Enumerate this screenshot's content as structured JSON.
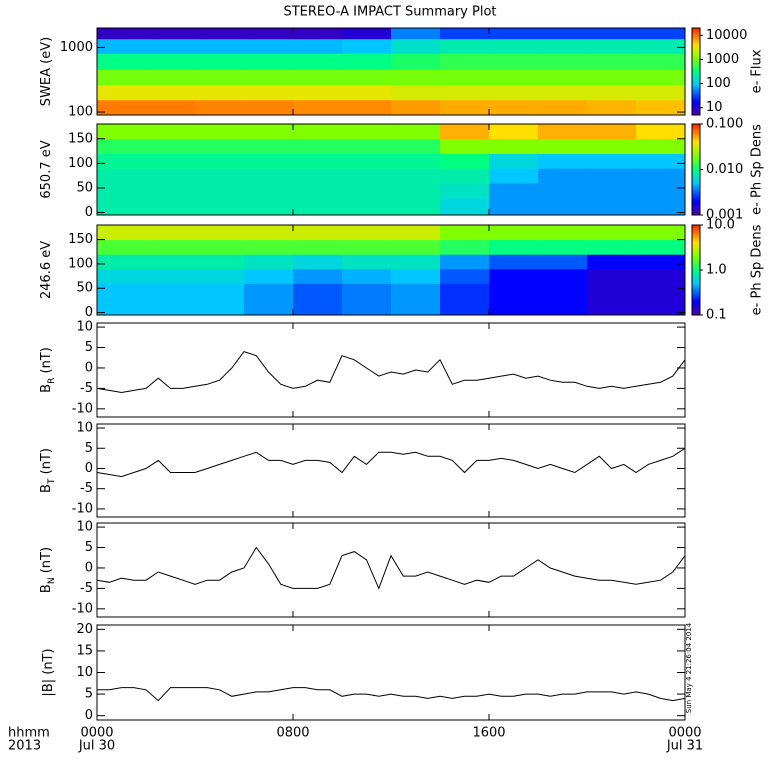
{
  "title": "STEREO-A IMPACT Summary Plot",
  "timestamp": "Sun May  4 21:26:04 2014",
  "xaxis": {
    "xlim": [
      0,
      24
    ],
    "xticks": [
      {
        "value": 0,
        "label": "0000"
      },
      {
        "value": 8,
        "label": "0800"
      },
      {
        "value": 16,
        "label": "1600"
      },
      {
        "value": 24,
        "label": "0000"
      }
    ],
    "dates": [
      {
        "value": 0,
        "label": "Jul 30"
      },
      {
        "value": 24,
        "label": "Jul 31"
      }
    ],
    "unit_label": "hhmm",
    "year": "2013"
  },
  "chart_data": [
    {
      "type": "heatmap",
      "ylabel": "SWEA (eV)",
      "ylog": true,
      "ylim": [
        90,
        2000
      ],
      "yticks": [
        100,
        1000
      ],
      "colorbar_label": "e- Flux",
      "clim": [
        5,
        20000
      ],
      "cticks": [
        10,
        100,
        1000,
        10000
      ],
      "x": [
        1,
        3,
        5,
        7,
        9,
        11,
        13,
        15,
        17,
        19,
        21,
        23
      ],
      "y": [
        120,
        200,
        350,
        600,
        1100,
        1700
      ],
      "values": [
        [
          9000,
          9000,
          8500,
          8500,
          8000,
          8000,
          7000,
          6000,
          6000,
          6000,
          5500,
          5000
        ],
        [
          3000,
          3000,
          3000,
          3000,
          3000,
          3000,
          2500,
          2500,
          2500,
          2500,
          2500,
          2500
        ],
        [
          1000,
          1000,
          1000,
          1000,
          1000,
          1000,
          1000,
          1000,
          1000,
          1000,
          1000,
          1000
        ],
        [
          300,
          300,
          300,
          300,
          300,
          300,
          400,
          500,
          500,
          500,
          500,
          500
        ],
        [
          80,
          80,
          80,
          80,
          80,
          90,
          150,
          200,
          200,
          200,
          200,
          200
        ],
        [
          8,
          8,
          8,
          8,
          8,
          10,
          50,
          30,
          30,
          30,
          30,
          30
        ]
      ]
    },
    {
      "type": "heatmap",
      "ylabel": "650.7 eV",
      "ylog": false,
      "ylim": [
        -5,
        180
      ],
      "yticks": [
        0,
        50,
        100,
        150
      ],
      "colorbar_label": "e- Ph Sp Dens",
      "clim": [
        0.001,
        0.1
      ],
      "cticks": [
        0.001,
        {
          "value": 0.01,
          "label": "0.010"
        },
        {
          "value": 0.1,
          "label": "0.100"
        }
      ],
      "x": [
        1,
        3,
        5,
        7,
        9,
        11,
        13,
        15,
        17,
        19,
        21,
        23
      ],
      "y": [
        15,
        45,
        75,
        105,
        135,
        165
      ],
      "values": [
        [
          0.008,
          0.008,
          0.008,
          0.008,
          0.008,
          0.008,
          0.008,
          0.006,
          0.004,
          0.004,
          0.004,
          0.004
        ],
        [
          0.008,
          0.008,
          0.008,
          0.008,
          0.008,
          0.008,
          0.008,
          0.007,
          0.004,
          0.004,
          0.004,
          0.004
        ],
        [
          0.008,
          0.008,
          0.008,
          0.008,
          0.008,
          0.008,
          0.008,
          0.008,
          0.005,
          0.004,
          0.004,
          0.004
        ],
        [
          0.009,
          0.009,
          0.009,
          0.009,
          0.009,
          0.009,
          0.009,
          0.01,
          0.006,
          0.005,
          0.005,
          0.005
        ],
        [
          0.012,
          0.012,
          0.012,
          0.012,
          0.012,
          0.012,
          0.012,
          0.02,
          0.02,
          0.02,
          0.02,
          0.02
        ],
        [
          0.02,
          0.02,
          0.02,
          0.02,
          0.02,
          0.02,
          0.02,
          0.05,
          0.04,
          0.05,
          0.05,
          0.04
        ]
      ]
    },
    {
      "type": "heatmap",
      "ylabel": "246.6 eV",
      "ylog": false,
      "ylim": [
        -5,
        180
      ],
      "yticks": [
        0,
        50,
        100,
        150
      ],
      "colorbar_label": "e- Ph Sp Dens",
      "clim": [
        0.1,
        10
      ],
      "cticks": [
        0.1,
        {
          "value": 1,
          "label": "1.0"
        },
        {
          "value": 10,
          "label": "10.0"
        }
      ],
      "x": [
        1,
        3,
        5,
        7,
        9,
        11,
        13,
        15,
        17,
        19,
        21,
        23
      ],
      "y": [
        15,
        45,
        75,
        105,
        135,
        165
      ],
      "values": [
        [
          0.5,
          0.5,
          0.5,
          0.4,
          0.3,
          0.35,
          0.4,
          0.25,
          0.2,
          0.2,
          0.15,
          0.15
        ],
        [
          0.5,
          0.5,
          0.5,
          0.4,
          0.3,
          0.35,
          0.4,
          0.25,
          0.2,
          0.2,
          0.15,
          0.15
        ],
        [
          0.6,
          0.6,
          0.6,
          0.5,
          0.4,
          0.45,
          0.5,
          0.3,
          0.2,
          0.2,
          0.15,
          0.15
        ],
        [
          0.8,
          0.8,
          0.8,
          0.7,
          0.6,
          0.7,
          0.7,
          0.4,
          0.3,
          0.3,
          0.2,
          0.2
        ],
        [
          1.5,
          1.5,
          1.5,
          1.5,
          1.5,
          1.5,
          1.5,
          1.2,
          1,
          1,
          1,
          1
        ],
        [
          3,
          3,
          3,
          3,
          3,
          3,
          3,
          2,
          2,
          2,
          2,
          2
        ]
      ]
    },
    {
      "type": "line",
      "ylabel": "B",
      "ylabel_sub": "R",
      "ylabel_unit": "(nT)",
      "ylim": [
        -12,
        11
      ],
      "yticks": [
        -10,
        -5,
        0,
        5,
        10
      ],
      "color": "#000000",
      "x": [
        0,
        0.5,
        1,
        1.5,
        2,
        2.5,
        3,
        3.5,
        4,
        4.5,
        5,
        5.5,
        6,
        6.5,
        7,
        7.5,
        8,
        8.5,
        9,
        9.5,
        10,
        10.5,
        11,
        11.5,
        12,
        12.5,
        13,
        13.5,
        14,
        14.5,
        15,
        15.5,
        16,
        16.5,
        17,
        17.5,
        18,
        18.5,
        19,
        19.5,
        20,
        20.5,
        21,
        21.5,
        22,
        22.5,
        23,
        23.5,
        24
      ],
      "values": [
        -5,
        -5.5,
        -6,
        -5.5,
        -5,
        -2.5,
        -5,
        -5,
        -4.5,
        -4,
        -3,
        0,
        4,
        3,
        -1,
        -4,
        -5,
        -4.5,
        -3,
        -3.5,
        3,
        2,
        0,
        -2,
        -1,
        -1.5,
        -0.5,
        -1,
        2,
        -4,
        -3,
        -3,
        -2.5,
        -2,
        -1.5,
        -2.5,
        -2,
        -3,
        -3.5,
        -3.5,
        -4.5,
        -5,
        -4.5,
        -5,
        -4.5,
        -4,
        -3.5,
        -2,
        2
      ]
    },
    {
      "type": "line",
      "ylabel": "B",
      "ylabel_sub": "T",
      "ylabel_unit": "(nT)",
      "ylim": [
        -12,
        11
      ],
      "yticks": [
        -10,
        -5,
        0,
        5,
        10
      ],
      "color": "#000000",
      "x": [
        0,
        0.5,
        1,
        1.5,
        2,
        2.5,
        3,
        3.5,
        4,
        4.5,
        5,
        5.5,
        6,
        6.5,
        7,
        7.5,
        8,
        8.5,
        9,
        9.5,
        10,
        10.5,
        11,
        11.5,
        12,
        12.5,
        13,
        13.5,
        14,
        14.5,
        15,
        15.5,
        16,
        16.5,
        17,
        17.5,
        18,
        18.5,
        19,
        19.5,
        20,
        20.5,
        21,
        21.5,
        22,
        22.5,
        23,
        23.5,
        24
      ],
      "values": [
        -1,
        -1.5,
        -2,
        -1,
        0,
        2,
        -1,
        -1,
        -1,
        0,
        1,
        2,
        3,
        4,
        2,
        2,
        1,
        2,
        2,
        1.5,
        -1,
        3,
        1,
        4,
        4,
        3.5,
        4,
        3,
        3,
        2,
        -1,
        2,
        2,
        2.5,
        2,
        1,
        0,
        1,
        0,
        -1,
        1,
        3,
        0,
        1,
        -1,
        1,
        2,
        3,
        5
      ]
    },
    {
      "type": "line",
      "ylabel": "B",
      "ylabel_sub": "N",
      "ylabel_unit": "(nT)",
      "ylim": [
        -12,
        11
      ],
      "yticks": [
        -10,
        -5,
        0,
        5,
        10
      ],
      "color": "#000000",
      "x": [
        0,
        0.5,
        1,
        1.5,
        2,
        2.5,
        3,
        3.5,
        4,
        4.5,
        5,
        5.5,
        6,
        6.5,
        7,
        7.5,
        8,
        8.5,
        9,
        9.5,
        10,
        10.5,
        11,
        11.5,
        12,
        12.5,
        13,
        13.5,
        14,
        14.5,
        15,
        15.5,
        16,
        16.5,
        17,
        17.5,
        18,
        18.5,
        19,
        19.5,
        20,
        20.5,
        21,
        21.5,
        22,
        22.5,
        23,
        23.5,
        24
      ],
      "values": [
        -3,
        -3.5,
        -2.5,
        -3,
        -3,
        -1,
        -2,
        -3,
        -4,
        -3,
        -3,
        -1,
        0,
        5,
        1,
        -4,
        -5,
        -5,
        -5,
        -4,
        3,
        4,
        2,
        -5,
        3,
        -2,
        -2,
        -1,
        -2,
        -3,
        -4,
        -3,
        -3.5,
        -2,
        -2,
        0,
        2,
        0,
        -1,
        -2,
        -2.5,
        -3,
        -3,
        -3.5,
        -4,
        -3.5,
        -3,
        -1,
        3
      ]
    },
    {
      "type": "line",
      "ylabel": "|B| (nT)",
      "ylim": [
        -1,
        21
      ],
      "yticks": [
        0,
        5,
        10,
        15,
        20
      ],
      "color": "#000000",
      "x": [
        0,
        0.5,
        1,
        1.5,
        2,
        2.5,
        3,
        3.5,
        4,
        4.5,
        5,
        5.5,
        6,
        6.5,
        7,
        7.5,
        8,
        8.5,
        9,
        9.5,
        10,
        10.5,
        11,
        11.5,
        12,
        12.5,
        13,
        13.5,
        14,
        14.5,
        15,
        15.5,
        16,
        16.5,
        17,
        17.5,
        18,
        18.5,
        19,
        19.5,
        20,
        20.5,
        21,
        21.5,
        22,
        22.5,
        23,
        23.5,
        24
      ],
      "values": [
        6,
        6,
        6.5,
        6.5,
        6,
        3.5,
        6.5,
        6.5,
        6.5,
        6.5,
        6,
        4.5,
        5,
        5.5,
        5.5,
        6,
        6.5,
        6.5,
        6,
        6,
        4.5,
        5,
        5,
        4.5,
        5,
        4.5,
        4.5,
        4,
        4.5,
        4,
        4.5,
        4.5,
        5,
        4.5,
        4.5,
        5,
        5,
        4.5,
        5,
        5,
        5.5,
        5.5,
        5.5,
        5,
        5.5,
        5,
        4,
        3.5,
        4
      ]
    }
  ]
}
